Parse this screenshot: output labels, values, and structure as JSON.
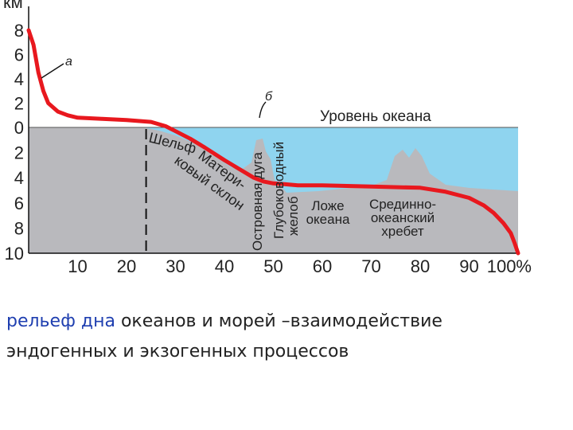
{
  "chart_data": {
    "type": "line",
    "title": "",
    "y_unit_label": "км",
    "x_tick_labels": [
      "10",
      "20",
      "30",
      "40",
      "50",
      "60",
      "70",
      "80",
      "90",
      "100%"
    ],
    "y_tick_labels_top": [
      "8",
      "6",
      "4",
      "2",
      "0"
    ],
    "y_tick_labels_bottom": [
      "2",
      "4",
      "6",
      "8",
      "10"
    ],
    "x_ticks": [
      10,
      20,
      30,
      40,
      50,
      60,
      70,
      80,
      90,
      100
    ],
    "xlim": [
      0,
      100
    ],
    "ylim": [
      -10,
      8
    ],
    "sea_level": 0,
    "hypsometric_curve": {
      "marker": "а",
      "x": [
        0,
        1,
        2,
        3,
        4,
        6,
        8,
        10,
        15,
        20,
        25,
        28,
        30,
        33,
        36,
        40,
        43,
        46,
        48,
        50,
        52,
        55,
        60,
        70,
        80,
        85,
        90,
        93,
        95,
        97,
        98.5,
        99.3,
        100
      ],
      "y": [
        8,
        6.8,
        4.5,
        3,
        2,
        1.3,
        1,
        0.8,
        0.7,
        0.6,
        0.45,
        0.1,
        -0.3,
        -0.9,
        -1.6,
        -2.6,
        -3.3,
        -4,
        -4.3,
        -4.45,
        -4.5,
        -4.6,
        -4.6,
        -4.7,
        -4.8,
        -5.1,
        -5.6,
        -6.2,
        -6.8,
        -7.6,
        -8.4,
        -9.2,
        -10
      ]
    },
    "shelf_boundary_x": 24,
    "annotations": {
      "curve_label": "а",
      "peak_label": "б",
      "sea_level_label": "Уровень океана",
      "shelf": "Шельф",
      "continental_slope": [
        "Матери-",
        "ковый склон"
      ],
      "island_arcs": "Островная дуга",
      "trench": [
        "Глубоководный",
        "желоб"
      ],
      "ocean_floor": [
        "Ложе",
        "океана"
      ],
      "mid_ocean_ridge": [
        "Срединно-",
        "океанский",
        "хребет"
      ]
    }
  },
  "caption": {
    "highlight": "рельеф дна",
    "line1_rest": " океанов и морей –взаимодействие",
    "line2": "эндогенных и экзогенных процессов"
  },
  "colors": {
    "curve": "#e8181e",
    "water": "#8fd4ef",
    "land": "#b9b9bd",
    "axis": "#111111",
    "caption_highlight": "#1f3fb0"
  }
}
